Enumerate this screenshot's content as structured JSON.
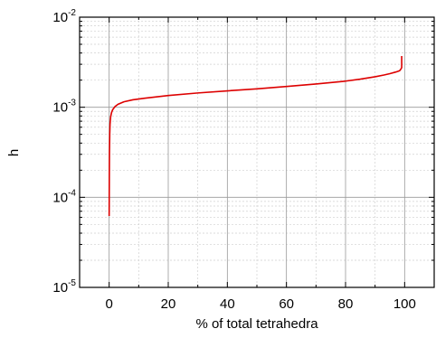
{
  "chart_data": {
    "type": "line",
    "title": "",
    "xlabel": "% of total tetrahedra",
    "ylabel": "h",
    "x_scale": "linear",
    "y_scale": "log",
    "xlim": [
      -10,
      110
    ],
    "ylim": [
      1e-05,
      0.01
    ],
    "grid": true,
    "legend": "none",
    "x_ticks": [
      {
        "value": 0,
        "label": "0"
      },
      {
        "value": 20,
        "label": "20"
      },
      {
        "value": 40,
        "label": "40"
      },
      {
        "value": 60,
        "label": "60"
      },
      {
        "value": 80,
        "label": "80"
      },
      {
        "value": 100,
        "label": "100"
      }
    ],
    "y_ticks": [
      {
        "value": 0.01,
        "base": "10",
        "exponent": "-2"
      },
      {
        "value": 0.001,
        "base": "10",
        "exponent": "-3"
      },
      {
        "value": 0.0001,
        "base": "10",
        "exponent": "-4"
      },
      {
        "value": 1e-05,
        "base": "10",
        "exponent": "-5"
      }
    ],
    "series": [
      {
        "color": "#dd0000",
        "x": [
          0,
          0.05,
          0.1,
          0.2,
          0.3,
          0.5,
          0.8,
          1.2,
          2,
          3,
          5,
          8,
          12,
          20,
          30,
          40,
          50,
          60,
          70,
          80,
          85,
          90,
          93,
          95,
          97,
          98,
          98.5,
          99,
          99
        ],
        "y": [
          6.2e-05,
          0.00016,
          0.0003,
          0.0005,
          0.00065,
          0.00078,
          0.00087,
          0.00094,
          0.00102,
          0.00108,
          0.00115,
          0.00121,
          0.00126,
          0.00135,
          0.00144,
          0.00152,
          0.0016,
          0.0017,
          0.00181,
          0.00195,
          0.00205,
          0.00218,
          0.00228,
          0.00236,
          0.00246,
          0.00252,
          0.00258,
          0.00275,
          0.0037
        ]
      }
    ]
  }
}
